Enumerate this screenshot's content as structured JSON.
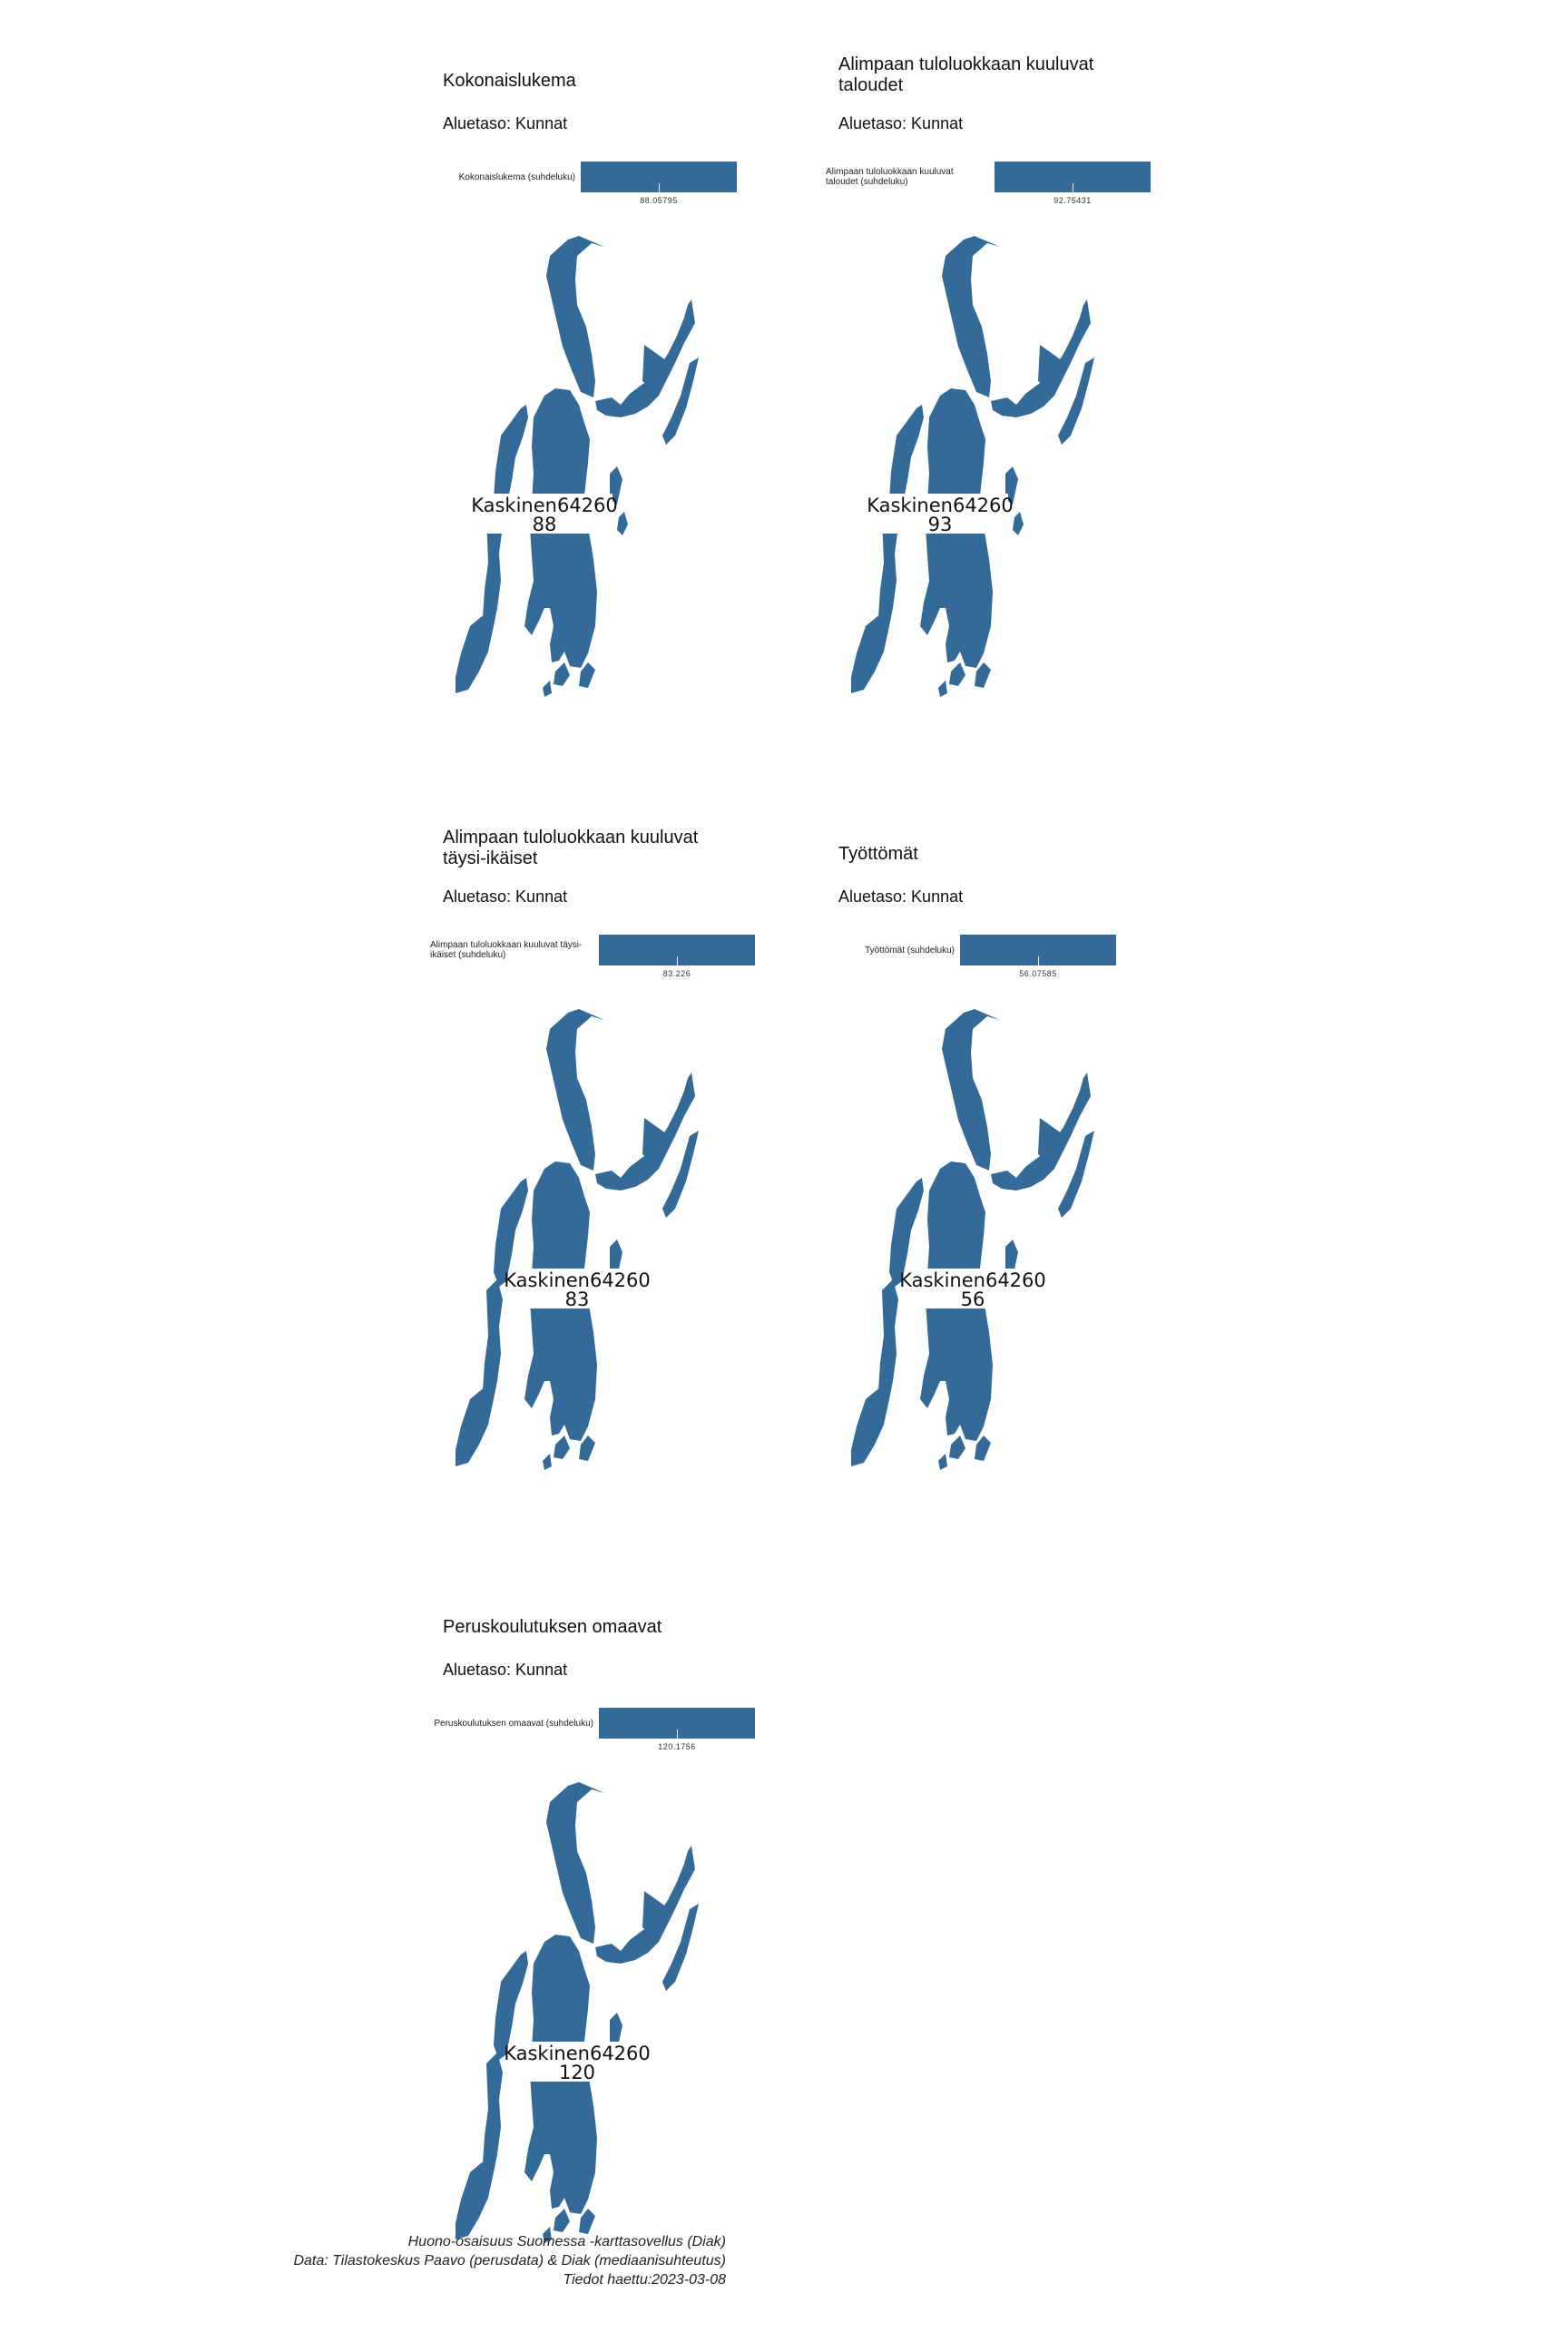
{
  "colors": {
    "fill": "#336a98",
    "background": "#ffffff"
  },
  "panels": [
    {
      "title": "Kokonaislukema",
      "subtitle": "Aluetaso: Kunnat",
      "legend_label": "Kokonaislukema (suhdeluku)",
      "legend_value": "88.05795",
      "region_name": "Kaskinen64260",
      "region_value": "88"
    },
    {
      "title": "Alimpaan tuloluokkaan kuuluvat taloudet",
      "subtitle": "Aluetaso: Kunnat",
      "legend_label": "Alimpaan tuloluokkaan kuuluvat taloudet (suhdeluku)",
      "legend_value": "92.75431",
      "region_name": "Kaskinen64260",
      "region_value": "93"
    },
    {
      "title": "Alimpaan tuloluokkaan kuuluvat täysi-ikäiset",
      "subtitle": "Aluetaso: Kunnat",
      "legend_label": "Alimpaan tuloluokkaan kuuluvat täysi-ikäiset (suhdeluku)",
      "legend_value": "83.226",
      "region_name": "Kaskinen64260",
      "region_value": "83"
    },
    {
      "title": "Työttömät",
      "subtitle": "Aluetaso: Kunnat",
      "legend_label": "Työttömät (suhdeluku)",
      "legend_value": "56.07585",
      "region_name": "Kaskinen64260",
      "region_value": "56"
    },
    {
      "title": "Peruskoulutuksen omaavat",
      "subtitle": "Aluetaso: Kunnat",
      "legend_label": "Peruskoulutuksen omaavat (suhdeluku)",
      "legend_value": "120.1756",
      "region_name": "Kaskinen64260",
      "region_value": "120"
    }
  ],
  "caption": {
    "line1": "Huono-osaisuus Suomessa -karttasovellus (Diak)",
    "line2": "Data: Tilastokeskus Paavo (perusdata) & Diak (mediaanisuhteutus)",
    "line3": "Tiedot haettu:2023-03-08"
  }
}
